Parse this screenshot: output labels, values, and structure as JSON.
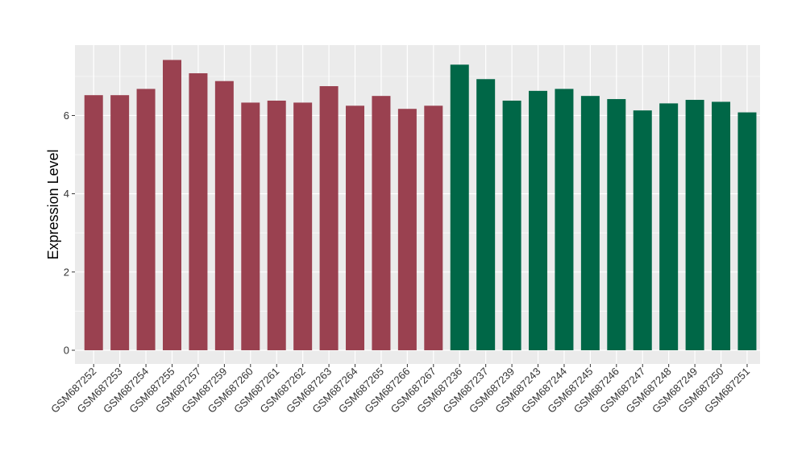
{
  "chart_data": {
    "type": "bar",
    "title": "",
    "xlabel": "",
    "ylabel": "Expression Level",
    "ylim": [
      -0.35,
      7.8
    ],
    "yticks": [
      0,
      2,
      4,
      6
    ],
    "grid": true,
    "panel_background": "#ebebeb",
    "grid_color": "#ffffff",
    "categories": [
      "GSM687252",
      "GSM687253",
      "GSM687254",
      "GSM687255",
      "GSM687257",
      "GSM687259",
      "GSM687260",
      "GSM687261",
      "GSM687262",
      "GSM687263",
      "GSM687264",
      "GSM687265",
      "GSM687266",
      "GSM687267",
      "GSM687236",
      "GSM687237",
      "GSM687239",
      "GSM687243",
      "GSM687244",
      "GSM687245",
      "GSM687246",
      "GSM687247",
      "GSM687248",
      "GSM687249",
      "GSM687250",
      "GSM687251"
    ],
    "values": [
      6.52,
      6.52,
      6.68,
      7.42,
      7.08,
      6.88,
      6.33,
      6.38,
      6.33,
      6.75,
      6.25,
      6.5,
      6.17,
      6.25,
      7.3,
      6.93,
      6.38,
      6.63,
      6.68,
      6.5,
      6.42,
      6.13,
      6.31,
      6.4,
      6.35,
      6.08
    ],
    "group_colors": [
      "#9a4150",
      "#9a4150",
      "#9a4150",
      "#9a4150",
      "#9a4150",
      "#9a4150",
      "#9a4150",
      "#9a4150",
      "#9a4150",
      "#9a4150",
      "#9a4150",
      "#9a4150",
      "#9a4150",
      "#9a4150",
      "#006747",
      "#006747",
      "#006747",
      "#006747",
      "#006747",
      "#006747",
      "#006747",
      "#006747",
      "#006747",
      "#006747",
      "#006747",
      "#006747"
    ]
  }
}
